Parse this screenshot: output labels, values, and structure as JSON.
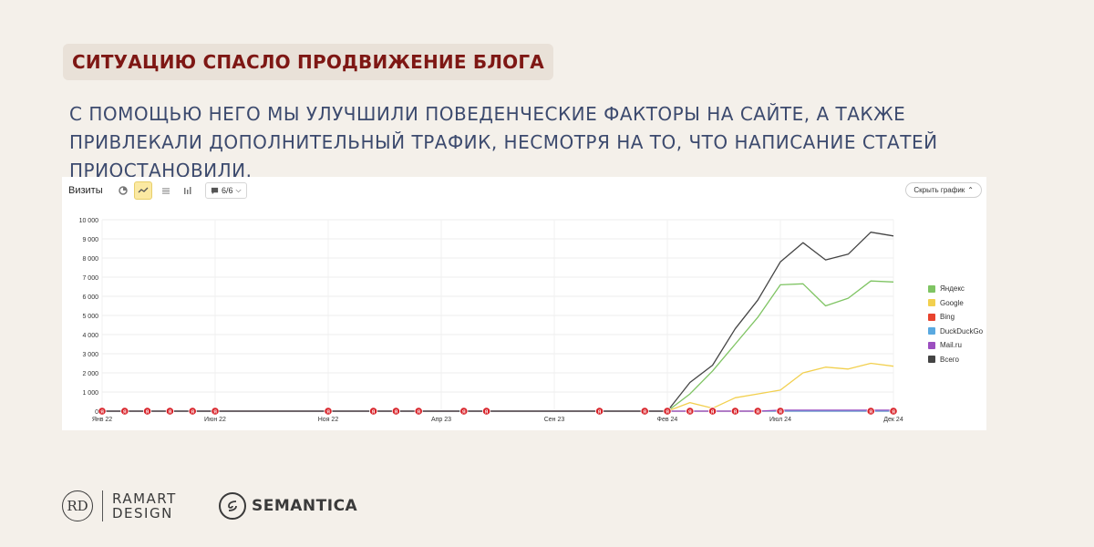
{
  "headline": "СИТУАЦИЮ СПАСЛО ПРОДВИЖЕНИЕ БЛОГА",
  "subtitle": "С ПОМОЩЬЮ НЕГО МЫ УЛУЧШИЛИ ПОВЕДЕНЧЕСКИЕ ФАКТОРЫ НА САЙТЕ, А ТАКЖЕ ПРИВЛЕКАЛИ ДОПОЛНИТЕЛЬНЫЙ ТРАФИК, НЕСМОТРЯ НА ТО, ЧТО НАПИСАНИЕ СТАТЕЙ ПРИОСТАНОВИЛИ.",
  "toolbar": {
    "title": "Визиты",
    "icons": [
      "pie-chart-icon",
      "line-chart-icon",
      "area-chart-icon",
      "bar-chart-icon"
    ],
    "segments_label": "6/6",
    "hide_chart_label": "Скрыть график"
  },
  "brands": {
    "rd_mark": "RD",
    "ramart_line1": "RAMART",
    "ramart_line2": "DESIGN",
    "semantica": "SEMANTICA"
  },
  "chart_data": {
    "type": "line",
    "title": "Визиты",
    "xlabel": "",
    "ylabel": "",
    "ylim": [
      0,
      10000
    ],
    "y_ticks": [
      "0",
      "1 000",
      "2 000",
      "3 000",
      "4 000",
      "5 000",
      "6 000",
      "7 000",
      "8 000",
      "9 000",
      "10 000"
    ],
    "x_ticks": [
      {
        "label": "Янв 22",
        "index": 0
      },
      {
        "label": "Июн 22",
        "index": 5
      },
      {
        "label": "Ноя 22",
        "index": 10
      },
      {
        "label": "Апр 23",
        "index": 15
      },
      {
        "label": "Сен 23",
        "index": 20
      },
      {
        "label": "Фев 24",
        "index": 25
      },
      {
        "label": "Июл 24",
        "index": 30
      },
      {
        "label": "Дек 24",
        "index": 35
      }
    ],
    "n_points": 36,
    "grid": true,
    "legend_position": "right",
    "series": [
      {
        "name": "Яндекс",
        "color": "#7fc463",
        "values": [
          0,
          0,
          0,
          0,
          0,
          0,
          0,
          0,
          0,
          0,
          0,
          0,
          0,
          0,
          0,
          0,
          0,
          0,
          0,
          0,
          0,
          0,
          0,
          0,
          0,
          0,
          900,
          2100,
          3500,
          4900,
          6600,
          6650,
          5500,
          5900,
          6800,
          6750
        ]
      },
      {
        "name": "Google",
        "color": "#f2d04f",
        "values": [
          0,
          0,
          0,
          0,
          0,
          0,
          0,
          0,
          0,
          0,
          0,
          0,
          0,
          0,
          0,
          0,
          0,
          0,
          0,
          0,
          0,
          0,
          0,
          0,
          0,
          0,
          450,
          150,
          700,
          900,
          1100,
          2000,
          2300,
          2200,
          2500,
          2350
        ]
      },
      {
        "name": "Bing",
        "color": "#e8432e",
        "values": [
          0,
          0,
          0,
          0,
          0,
          0,
          0,
          0,
          0,
          0,
          0,
          0,
          0,
          0,
          0,
          0,
          0,
          0,
          0,
          0,
          0,
          0,
          0,
          0,
          0,
          0,
          0,
          0,
          0,
          0,
          0,
          0,
          0,
          0,
          0,
          0
        ]
      },
      {
        "name": "DuckDuckGo",
        "color": "#5aa9e0",
        "values": [
          0,
          0,
          0,
          0,
          0,
          0,
          0,
          0,
          0,
          0,
          0,
          0,
          0,
          0,
          0,
          0,
          0,
          0,
          0,
          0,
          0,
          0,
          0,
          0,
          0,
          0,
          0,
          0,
          0,
          0,
          0,
          0,
          0,
          0,
          0,
          0
        ]
      },
      {
        "name": "Mail.ru",
        "color": "#9c4fc0",
        "values": [
          0,
          0,
          0,
          0,
          0,
          0,
          0,
          0,
          0,
          0,
          0,
          0,
          0,
          0,
          0,
          0,
          0,
          0,
          0,
          0,
          0,
          0,
          0,
          0,
          0,
          0,
          0,
          0,
          0,
          0,
          50,
          50,
          50,
          50,
          50,
          50
        ]
      },
      {
        "name": "Всего",
        "color": "#444444",
        "values": [
          0,
          0,
          0,
          0,
          0,
          0,
          0,
          0,
          0,
          0,
          0,
          0,
          0,
          0,
          0,
          0,
          0,
          0,
          0,
          0,
          0,
          0,
          0,
          0,
          0,
          0,
          1500,
          2400,
          4300,
          5800,
          7800,
          8800,
          7900,
          8200,
          9350,
          9150
        ]
      }
    ],
    "annotation_marker_label": "Я",
    "annotation_indices": [
      0,
      1,
      2,
      3,
      4,
      5,
      10,
      12,
      13,
      14,
      16,
      17,
      22,
      24,
      25,
      26,
      27,
      28,
      29,
      30,
      34,
      35
    ]
  }
}
